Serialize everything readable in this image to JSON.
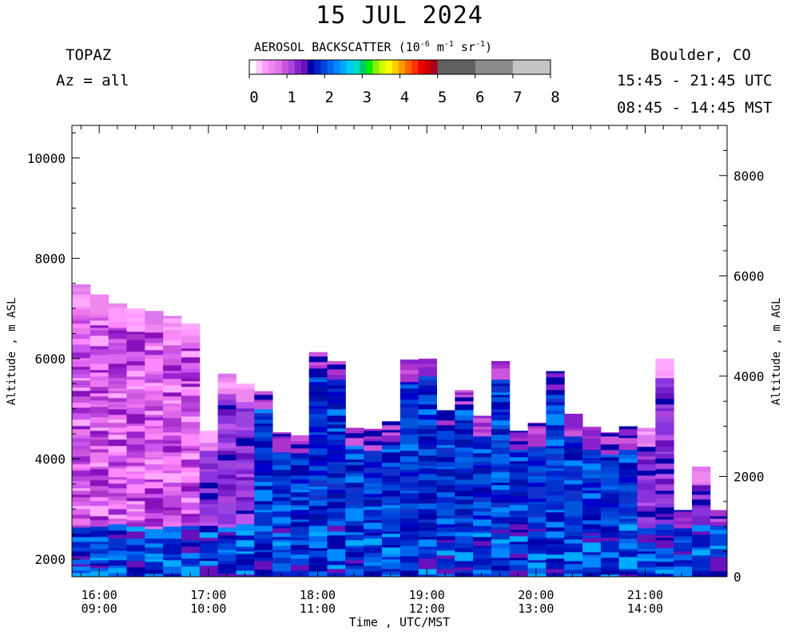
{
  "header": {
    "title": "15 JUL 2024",
    "instrument": "TOPAZ",
    "azimuth": "Az = all",
    "location": "Boulder, CO",
    "utc_range": "15:45 - 21:45 UTC",
    "mst_range": "08:45 - 14:45 MST"
  },
  "colorbar": {
    "label_prefix": "AEROSOL BACKSCATTER (10",
    "exp1": "-6",
    "unit_m": " m",
    "exp2": "-1",
    "unit_sr": " sr",
    "exp3": "-1",
    "label_suffix": ")",
    "ticks": [
      "0",
      "1",
      "2",
      "3",
      "4",
      "5",
      "6",
      "7",
      "8"
    ],
    "colors": [
      "#ffffff",
      "#ffccff",
      "#ff99ff",
      "#ee88ee",
      "#dd77ee",
      "#cc55dd",
      "#aa44dd",
      "#8822cc",
      "#6611bb",
      "#0000aa",
      "#0022cc",
      "#0044dd",
      "#0066ee",
      "#0088ff",
      "#00aaff",
      "#00ccee",
      "#00ddcc",
      "#00cc66",
      "#00ee00",
      "#88ee00",
      "#ccff00",
      "#ffff00",
      "#ffcc00",
      "#ff9900",
      "#ff6600",
      "#ff3300",
      "#ee0000",
      "#cc0000",
      "#aa0022"
    ],
    "gray_blocks": [
      "#606060",
      "#8c8c8c",
      "#c4c4c4"
    ]
  },
  "chart_data": {
    "type": "heatmap",
    "title": "15 JUL 2024",
    "xlabel": "Time , UTC/MST",
    "ylabel_left": "Altitude , m ASL",
    "ylabel_right": "Altitude , m AGL",
    "x_unit": "hours UTC",
    "xlim": [
      15.75,
      21.75
    ],
    "ylim_left": [
      1650,
      10650
    ],
    "ylim_right": [
      0,
      9000
    ],
    "x_ticks": [
      {
        "utc": "16:00",
        "mst": "09:00",
        "value": 16
      },
      {
        "utc": "17:00",
        "mst": "10:00",
        "value": 17
      },
      {
        "utc": "18:00",
        "mst": "11:00",
        "value": 18
      },
      {
        "utc": "19:00",
        "mst": "12:00",
        "value": 19
      },
      {
        "utc": "20:00",
        "mst": "13:00",
        "value": 20
      },
      {
        "utc": "21:00",
        "mst": "14:00",
        "value": 21
      }
    ],
    "y_ticks_left": [
      "2000",
      "4000",
      "6000",
      "8000",
      "10000"
    ],
    "y_ticks_right": [
      "0",
      "2000",
      "4000",
      "6000",
      "8000"
    ],
    "column_width_hours": 0.167,
    "profile_tops_m_asl": [
      7480,
      7280,
      7100,
      7000,
      6950,
      6850,
      6700,
      4560,
      5700,
      5500,
      5350,
      4530,
      4470,
      6130,
      5950,
      4620,
      4600,
      4750,
      5980,
      6000,
      4970,
      5370,
      4860,
      5950,
      4560,
      4720,
      5750,
      4900,
      4640,
      4530,
      4650,
      4620,
      6000,
      2980,
      3850,
      2980
    ],
    "profile_groups": [
      "pink",
      "pink",
      "pink",
      "pink",
      "pink",
      "pink",
      "pink",
      "purple",
      "purple",
      "purple",
      "blue",
      "blue",
      "blue",
      "blue",
      "blue",
      "blue",
      "blue",
      "blue",
      "blue",
      "blue",
      "blue",
      "blue",
      "blue",
      "blue",
      "blue",
      "blue",
      "blue",
      "blue",
      "blue",
      "blue",
      "blue",
      "purple",
      "purple",
      "blue",
      "purple",
      "blue"
    ]
  }
}
